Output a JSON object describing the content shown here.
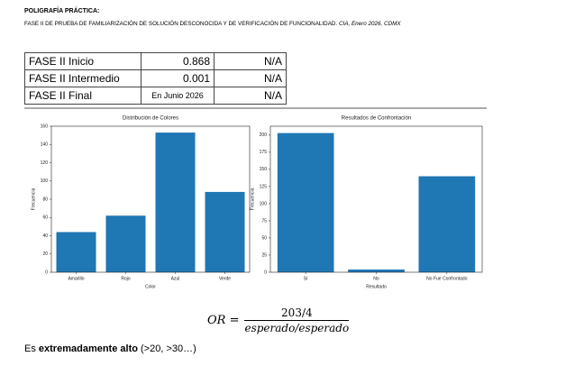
{
  "header": {
    "title": "POLIGRAFÍA PRÁCTICA:",
    "subtitle": "FASE II DE PRUEBA DE FAMILIARIZACIÓN DE SOLUCIÓN DESCONOCIDA Y DE VERIFICACIÓN DE FUNCIONALIDAD.",
    "source": "CIA, Enero 2026, CDMX"
  },
  "table": {
    "rows": [
      [
        "FASE II Inicio",
        "0.868",
        "N/A"
      ],
      [
        "FASE II Intermedio",
        "0.001",
        "N/A"
      ],
      [
        "FASE II Final",
        "En Junio 2026",
        "N/A"
      ]
    ]
  },
  "chart_data": [
    {
      "type": "bar",
      "title": "Distribución de Colores",
      "x_label": "Color",
      "y_label": "Frecuencia",
      "categories": [
        "Amarillo",
        "Rojo",
        "Azul",
        "Verde"
      ],
      "values": [
        44,
        62,
        153,
        88
      ],
      "color": "#1f77b4",
      "ylim": [
        0,
        160
      ],
      "yticks": [
        0,
        20,
        40,
        60,
        80,
        100,
        120,
        140,
        160
      ]
    },
    {
      "type": "bar",
      "title": "Resultados de Confrontación",
      "x_label": "Resultado",
      "y_label": "Frecuencia",
      "categories": [
        "Sí",
        "No",
        "No Fue Confrontado"
      ],
      "values": [
        203,
        4,
        140
      ],
      "color": "#1f77b4",
      "ylim": [
        0,
        213
      ],
      "yticks": [
        0,
        25,
        50,
        75,
        100,
        125,
        150,
        175,
        200
      ]
    }
  ],
  "formula": {
    "lhs": "OR =",
    "numerator": "203/4",
    "denominator": "esperado/esperado"
  },
  "conclusion": {
    "prefix": "Es",
    "emphasis": "extremadamente alto",
    "suffix": "(>20, >30…)"
  }
}
